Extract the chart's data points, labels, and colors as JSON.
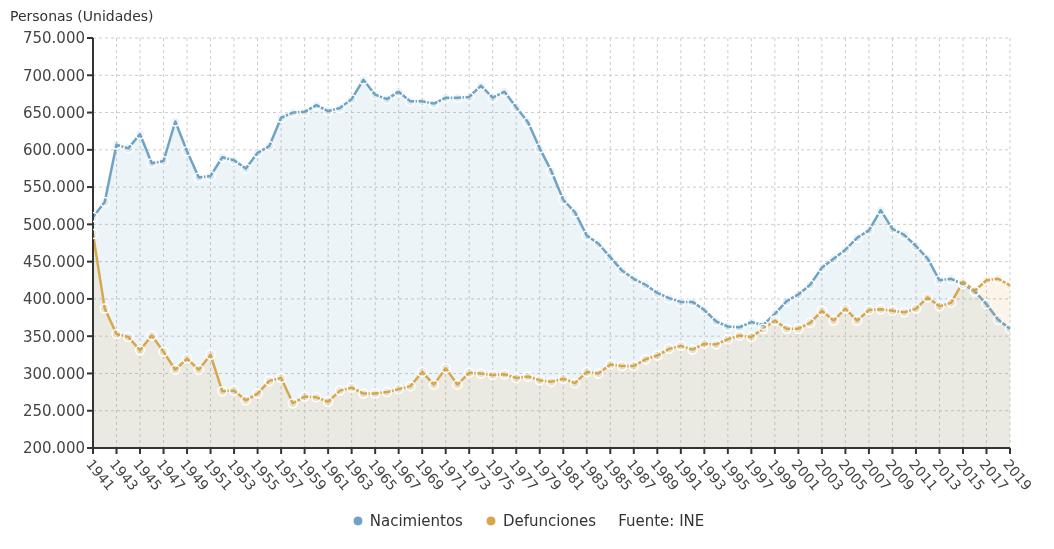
{
  "chart_data": {
    "type": "area",
    "ylabel": "Personas (Unidades)",
    "annotations": [
      "Fuente: INE"
    ],
    "x": [
      1941,
      1942,
      1943,
      1944,
      1945,
      1946,
      1947,
      1948,
      1949,
      1950,
      1951,
      1952,
      1953,
      1954,
      1955,
      1956,
      1957,
      1958,
      1959,
      1960,
      1961,
      1962,
      1963,
      1964,
      1965,
      1966,
      1967,
      1968,
      1969,
      1970,
      1971,
      1972,
      1973,
      1974,
      1975,
      1976,
      1977,
      1978,
      1979,
      1980,
      1981,
      1982,
      1983,
      1984,
      1985,
      1986,
      1987,
      1988,
      1989,
      1990,
      1991,
      1992,
      1993,
      1994,
      1995,
      1996,
      1997,
      1998,
      1999,
      2000,
      2001,
      2002,
      2003,
      2004,
      2005,
      2006,
      2007,
      2008,
      2009,
      2010,
      2011,
      2012,
      2013,
      2014,
      2015,
      2016,
      2017,
      2018,
      2019
    ],
    "series": [
      {
        "name": "Nacimientos",
        "color": "#6fa3c4",
        "values": [
          510000,
          530000,
          607000,
          602000,
          621000,
          582000,
          585000,
          638000,
          598000,
          563000,
          565000,
          590000,
          586000,
          575000,
          596000,
          605000,
          643000,
          650000,
          651000,
          660000,
          652000,
          656000,
          668000,
          694000,
          674000,
          668000,
          678000,
          665000,
          665000,
          662000,
          670000,
          670000,
          671000,
          686000,
          670000,
          678000,
          657000,
          637000,
          602000,
          571000,
          533000,
          516000,
          485000,
          474000,
          456000,
          438000,
          427000,
          419000,
          408000,
          401000,
          396000,
          396000,
          385000,
          370000,
          363000,
          362000,
          369000,
          365000,
          380000,
          397000,
          406000,
          419000,
          442000,
          454000,
          466000,
          482000,
          492000,
          519000,
          494000,
          486000,
          471000,
          454000,
          425000,
          427000,
          420000,
          410000,
          393000,
          372000,
          360000
        ]
      },
      {
        "name": "Defunciones",
        "color": "#d6a74d",
        "values": [
          487000,
          387000,
          353000,
          349000,
          331000,
          351000,
          329000,
          305000,
          320000,
          305000,
          325000,
          276000,
          277000,
          264000,
          273000,
          290000,
          294000,
          260000,
          269000,
          268000,
          262000,
          277000,
          281000,
          273000,
          273000,
          275000,
          279000,
          283000,
          302000,
          285000,
          307000,
          285000,
          301000,
          300000,
          298000,
          299000,
          294000,
          296000,
          291000,
          289000,
          293000,
          287000,
          302000,
          300000,
          312000,
          310000,
          310000,
          319000,
          324000,
          333000,
          337000,
          332000,
          340000,
          339000,
          346000,
          351000,
          349000,
          360000,
          371000,
          360000,
          360000,
          368000,
          384000,
          371000,
          387000,
          371000,
          385000,
          386000,
          384000,
          382000,
          387000,
          402000,
          390000,
          395000,
          423000,
          411000,
          425000,
          427000,
          418000
        ]
      }
    ],
    "xlim": [
      1941,
      2019
    ],
    "xticks": [
      1941,
      1943,
      1945,
      1947,
      1949,
      1951,
      1953,
      1955,
      1957,
      1959,
      1961,
      1963,
      1965,
      1967,
      1969,
      1971,
      1973,
      1975,
      1977,
      1979,
      1981,
      1983,
      1985,
      1987,
      1989,
      1991,
      1993,
      1995,
      1997,
      1999,
      2001,
      2003,
      2005,
      2007,
      2009,
      2011,
      2013,
      2015,
      2017,
      2019
    ],
    "ylim": [
      200000,
      750000
    ],
    "yticks": [
      {
        "value": 200000,
        "label": "200.000"
      },
      {
        "value": 250000,
        "label": "250.000"
      },
      {
        "value": 300000,
        "label": "300.000"
      },
      {
        "value": 350000,
        "label": "350.000"
      },
      {
        "value": 400000,
        "label": "400.000"
      },
      {
        "value": 450000,
        "label": "450.000"
      },
      {
        "value": 500000,
        "label": "500.000"
      },
      {
        "value": 550000,
        "label": "550.000"
      },
      {
        "value": 600000,
        "label": "600.000"
      },
      {
        "value": 650000,
        "label": "650.000"
      },
      {
        "value": 700000,
        "label": "700.000"
      },
      {
        "value": 750000,
        "label": "750.000"
      }
    ],
    "grid": true,
    "legend": "bottom",
    "marker": "circle",
    "line_style": "solid"
  }
}
